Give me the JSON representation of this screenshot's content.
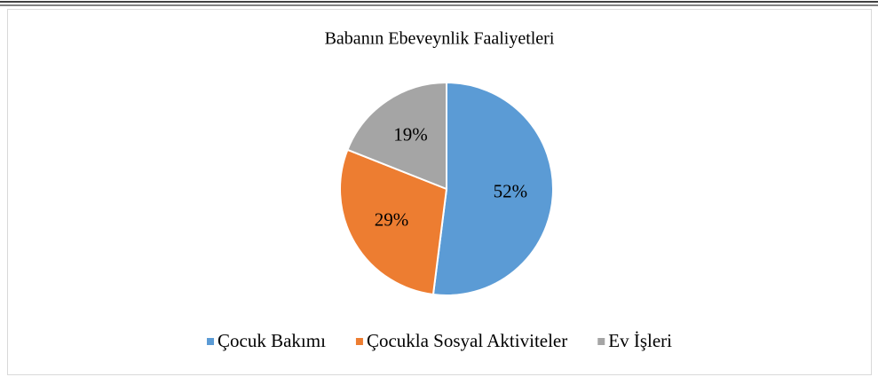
{
  "chart_data": {
    "type": "pie",
    "title": "Babanın Ebeveynlik Faaliyetleri",
    "categories": [
      "Çocuk Bakımı",
      "Çocukla Sosyal Aktiviteler",
      "Ev İşleri"
    ],
    "values": [
      52,
      29,
      19
    ],
    "value_labels": [
      "52%",
      "29%",
      "19%"
    ],
    "colors": [
      "#5b9bd5",
      "#ed7d31",
      "#a5a5a5"
    ],
    "legend": "bottom"
  }
}
